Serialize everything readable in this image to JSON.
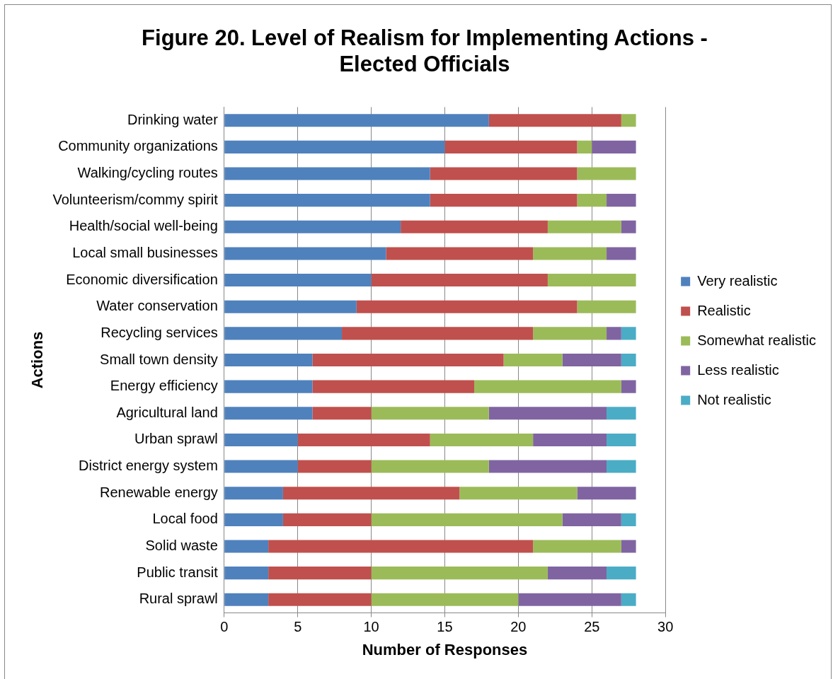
{
  "chart_data": {
    "type": "bar",
    "orientation": "horizontal",
    "stacked": true,
    "title": "Figure 20. Level of Realism for Implementing Actions - Elected Officials",
    "xlabel": "Number of Responses",
    "ylabel": "Actions",
    "categories": [
      "Drinking water",
      "Community organizations",
      "Walking/cycling routes",
      "Volunteerism/commy spirit",
      "Health/social well-being",
      "Local small businesses",
      "Economic diversification",
      "Water conservation",
      "Recycling services",
      "Small town density",
      "Energy efficiency",
      "Agricultural land",
      "Urban sprawl",
      "District energy system",
      "Renewable energy",
      "Local food",
      "Solid waste",
      "Public transit",
      "Rural sprawl"
    ],
    "series": [
      {
        "name": "Very realistic",
        "color": "#4f81bd",
        "values": [
          18,
          15,
          14,
          14,
          12,
          11,
          10,
          9,
          8,
          6,
          6,
          6,
          5,
          5,
          4,
          4,
          3,
          3,
          3
        ]
      },
      {
        "name": "Realistic",
        "color": "#c0504d",
        "values": [
          9,
          9,
          10,
          10,
          10,
          10,
          12,
          15,
          13,
          13,
          11,
          4,
          9,
          5,
          12,
          6,
          18,
          7,
          7
        ]
      },
      {
        "name": "Somewhat realistic",
        "color": "#9bbb59",
        "values": [
          1,
          1,
          4,
          2,
          5,
          5,
          6,
          4,
          5,
          4,
          10,
          8,
          7,
          8,
          8,
          13,
          6,
          12,
          10
        ]
      },
      {
        "name": "Less realistic",
        "color": "#8064a2",
        "values": [
          0,
          3,
          0,
          2,
          1,
          2,
          0,
          0,
          1,
          4,
          1,
          8,
          5,
          8,
          4,
          4,
          1,
          4,
          7
        ]
      },
      {
        "name": "Not realistic",
        "color": "#4bacc6",
        "values": [
          0,
          0,
          0,
          0,
          0,
          0,
          0,
          0,
          1,
          1,
          0,
          2,
          2,
          2,
          0,
          1,
          0,
          2,
          1
        ]
      }
    ],
    "xlim": [
      0,
      30
    ],
    "xticks": [
      0,
      5,
      10,
      15,
      20,
      25,
      30
    ],
    "grid": "x",
    "legend": "right"
  }
}
